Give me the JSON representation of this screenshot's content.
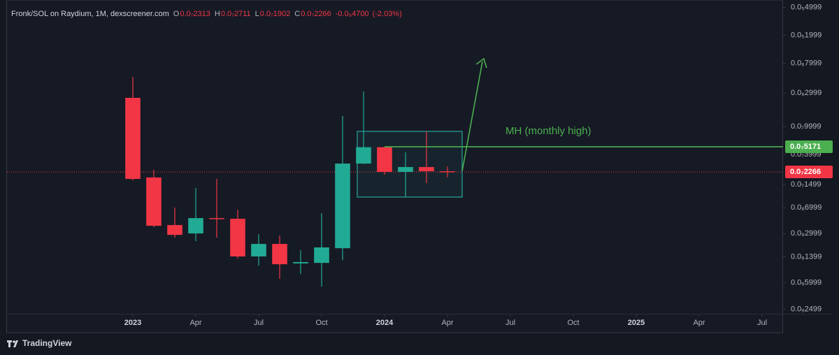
{
  "chart_data": {
    "type": "candlestick",
    "title": "Fronk/SOL on Raydium, 1M, dexscreener.com",
    "ohlc_names": [
      "O",
      "H",
      "L",
      "C"
    ],
    "ohlc_values": [
      2.313e-08,
      2.711e-08,
      1.902e-08,
      2.266e-08
    ],
    "ohlc_value_labels": [
      "0.0₇2313",
      "0.0₇2711",
      "0.0₇1902",
      "0.0₇2266"
    ],
    "change": {
      "value": -4.7e-10,
      "label": "-0.0₉4700"
    },
    "change_percent": {
      "value": -2.03,
      "label": "(-2.03%)"
    },
    "x": [
      "2023-01",
      "2023-02",
      "2023-03",
      "2023-04",
      "2023-05",
      "2023-06",
      "2023-07",
      "2023-08",
      "2023-09",
      "2023-10",
      "2023-11",
      "2023-12",
      "2024-01",
      "2024-02",
      "2024-03",
      "2024-04"
    ],
    "open": [
      2.57e-07,
      1.89e-08,
      3.97e-09,
      3.02e-09,
      4.99e-09,
      4.88e-09,
      1.42e-09,
      2.14e-09,
      1.13e-09,
      1.15e-09,
      1.86e-09,
      2.98e-08,
      5.1e-08,
      2.27e-08,
      2.66e-08,
      2.313e-08
    ],
    "high": [
      5.11e-07,
      2.43e-08,
      7.04e-09,
      1.34e-08,
      1.8e-08,
      6.58e-09,
      2.95e-09,
      2.82e-09,
      1.74e-09,
      5.87e-09,
      1.42e-07,
      3.16e-07,
      5.171e-08,
      4.3e-08,
      8.56e-08,
      2.711e-08
    ],
    "low": [
      1.72e-08,
      3.71e-09,
      2.63e-09,
      2.35e-09,
      2.63e-09,
      1.32e-09,
      1.05e-09,
      6.81e-10,
      7.99e-10,
      5.29e-10,
      1.26e-09,
      2.92e-08,
      2.07e-08,
      9.93e-09,
      1.57e-08,
      1.902e-08
    ],
    "close": [
      1.8e-08,
      3.88e-09,
      2.88e-09,
      4.99e-09,
      4.88e-09,
      1.42e-09,
      2.14e-09,
      1.1e-09,
      1.18e-09,
      1.91e-09,
      2.98e-08,
      5.1e-08,
      2.27e-08,
      2.66e-08,
      2.32e-08,
      2.266e-08
    ],
    "up_color": "#22ab94",
    "down_color": "#f23645",
    "log_scale": true,
    "ylim": [
      2.12e-10,
      6.35e-06
    ],
    "yticks": [
      {
        "value": 4.999e-06,
        "label": "0.0₅4999"
      },
      {
        "value": 1.999e-06,
        "label": "0.0₅1999"
      },
      {
        "value": 7.999e-07,
        "label": "0.0₆7999"
      },
      {
        "value": 2.999e-07,
        "label": "0.0₆2999"
      },
      {
        "value": 9.999e-08,
        "label": "0.0₇9999"
      },
      {
        "value": 3.999e-08,
        "label": "0.0₇3999"
      },
      {
        "value": 1.499e-08,
        "label": "0.0₇1499"
      },
      {
        "value": 6.999e-09,
        "label": "0.0₈6999"
      },
      {
        "value": 2.999e-09,
        "label": "0.0₈2999"
      },
      {
        "value": 1.399e-09,
        "label": "0.0₈1399"
      },
      {
        "value": 5.999e-10,
        "label": "0.0₉5999"
      },
      {
        "value": 2.499e-10,
        "label": "0.0₉2499"
      }
    ],
    "xlim": [
      "2022-07",
      "2025-08"
    ],
    "xticks": [
      {
        "value": "2023-01",
        "label": "2023"
      },
      {
        "value": "2023-04",
        "label": "Apr"
      },
      {
        "value": "2023-07",
        "label": "Jul"
      },
      {
        "value": "2023-10",
        "label": "Oct"
      },
      {
        "value": "2024-01",
        "label": "2024"
      },
      {
        "value": "2024-04",
        "label": "Apr"
      },
      {
        "value": "2024-07",
        "label": "Jul"
      },
      {
        "value": "2024-10",
        "label": "Oct"
      },
      {
        "value": "2025-01",
        "label": "2025"
      },
      {
        "value": "2025-04",
        "label": "Apr"
      },
      {
        "value": "2025-07",
        "label": "Jul"
      }
    ],
    "mh_line": {
      "value": 5.171e-08,
      "label": "0.0₇5171",
      "color": "#4caf50"
    },
    "mh_annotation": "MH (monthly high)",
    "last_price_line": {
      "value": 2.266e-08,
      "label": "0.0₇2266",
      "color": "#f23645"
    }
  },
  "footer": "TradingView"
}
